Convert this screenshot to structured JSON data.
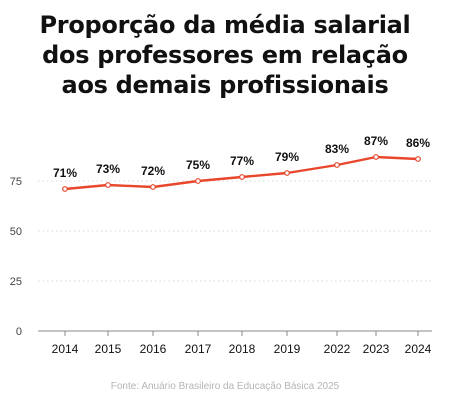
{
  "title_lines": [
    "Proporção da média salarial",
    "dos professores em relação",
    "aos demais profissionais"
  ],
  "source": "Fonte: Anuário Brasileiro da Educação Básica 2025",
  "colors": {
    "line": "#e8472b",
    "text": "#111111",
    "axis": "#888888",
    "grid": "#d8d8d8",
    "source": "#b5b5b5"
  },
  "chart_data": {
    "type": "line",
    "title": "Proporção da média salarial dos professores em relação aos demais profissionais",
    "categories": [
      "2014",
      "2015",
      "2016",
      "2017",
      "2018",
      "2019",
      "2022",
      "2023",
      "2024"
    ],
    "series": [
      {
        "values": [
          71,
          73,
          72,
          75,
          77,
          79,
          83,
          87,
          86
        ],
        "data_labels": [
          "71%",
          "73%",
          "72%",
          "75%",
          "77%",
          "79%",
          "83%",
          "87%",
          "86%"
        ]
      }
    ],
    "yticks": [
      0,
      25,
      50,
      75
    ],
    "ylim": [
      0,
      87
    ],
    "grid": true,
    "xlabel": "",
    "ylabel": ""
  }
}
